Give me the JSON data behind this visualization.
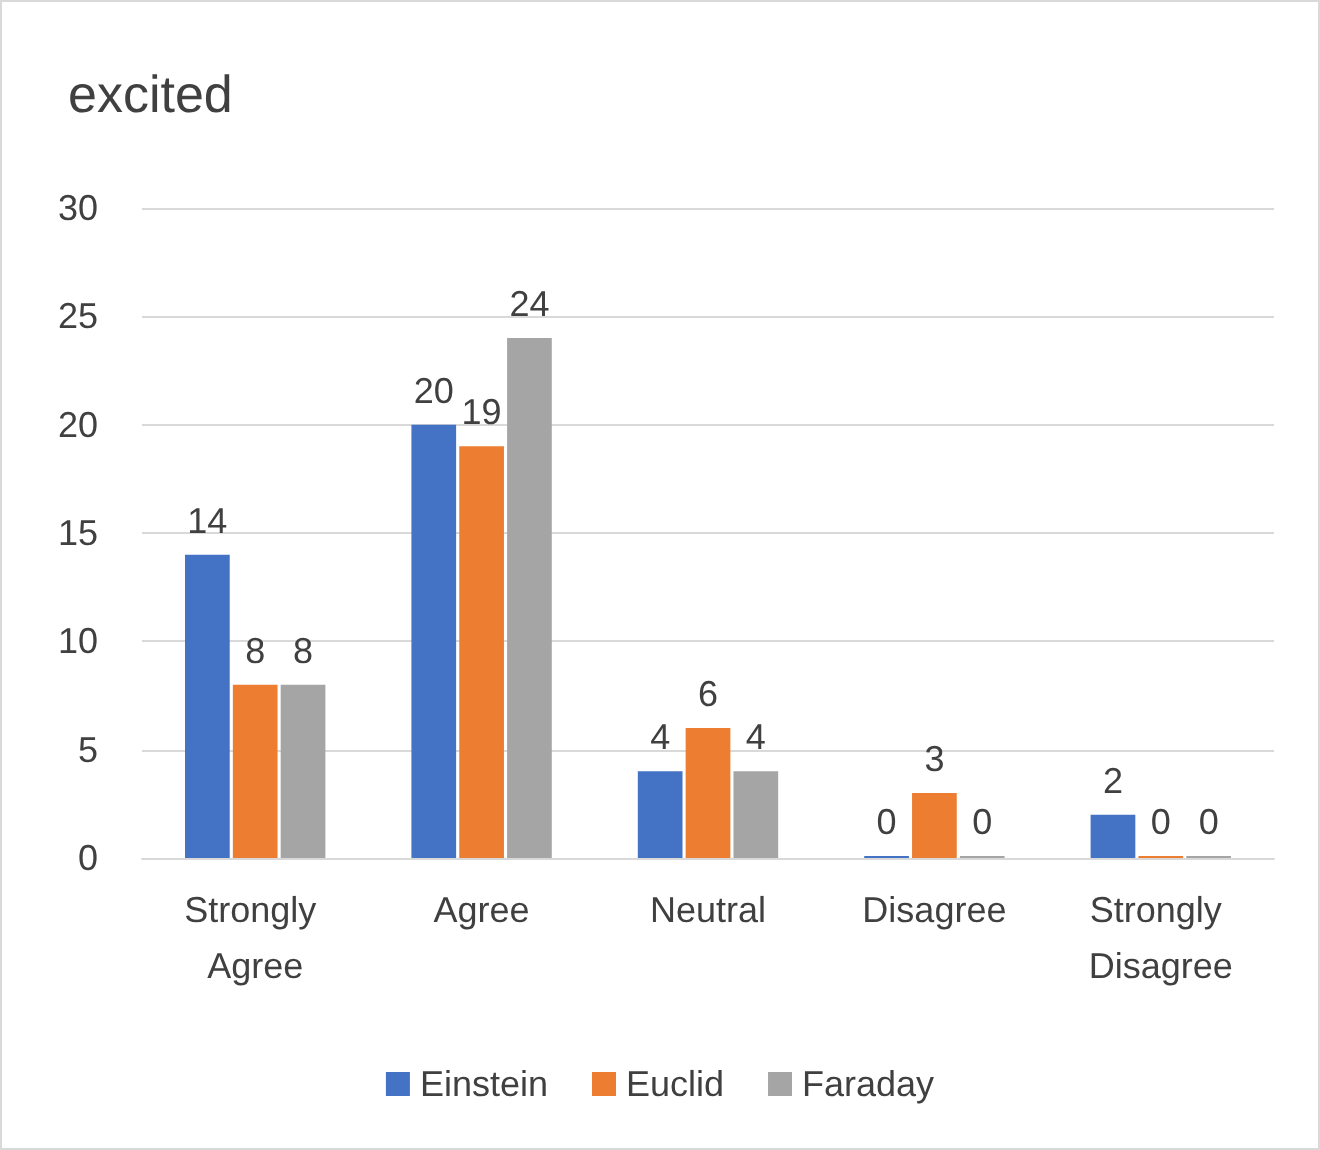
{
  "chart_data": {
    "type": "bar",
    "title": "excited",
    "categories": [
      "Strongly Agree",
      "Agree",
      "Neutral",
      "Disagree",
      "Strongly Disagree"
    ],
    "series": [
      {
        "name": "Einstein",
        "color": "#4472c4",
        "values": [
          14,
          20,
          4,
          0,
          2
        ]
      },
      {
        "name": "Euclid",
        "color": "#ed7d31",
        "values": [
          8,
          19,
          6,
          3,
          0
        ]
      },
      {
        "name": "Faraday",
        "color": "#a5a5a5",
        "values": [
          8,
          24,
          4,
          0,
          0
        ]
      }
    ],
    "ylim": [
      0,
      30
    ],
    "yticks": [
      0,
      5,
      10,
      15,
      20,
      25,
      30
    ],
    "grid": "y",
    "legend": "bottom",
    "data_labels": true
  }
}
